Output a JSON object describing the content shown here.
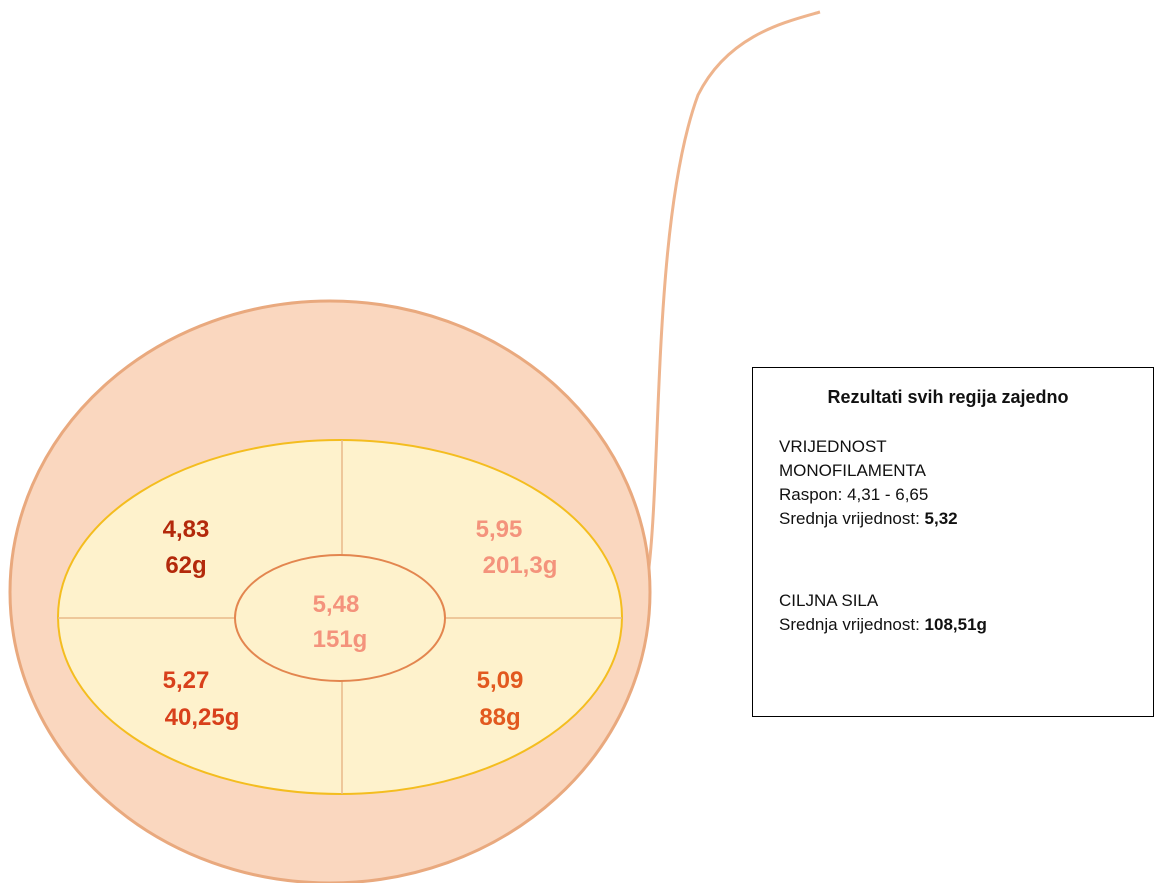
{
  "regions": [
    {
      "value": "4,83",
      "force": "62g"
    },
    {
      "value": "5,95",
      "force": "201,3g"
    },
    {
      "value": "5,48",
      "force": "151g"
    },
    {
      "value": "5,27",
      "force": "40,25g"
    },
    {
      "value": "5,09",
      "force": "88g"
    }
  ],
  "summary": {
    "title": "Rezultati svih regija zajedno",
    "monofilament": {
      "heading": [
        "VRIJEDNOST",
        "MONOFILAMENTA"
      ],
      "range_label": "Raspon:",
      "range": "4,31 - 6,65",
      "mean_label": "Srednja vrijednost:",
      "mean": "5,32"
    },
    "target_force": {
      "heading": "CILJNA SILA",
      "mean_label": "Srednja vrijednost:",
      "mean": "108,51g"
    }
  }
}
